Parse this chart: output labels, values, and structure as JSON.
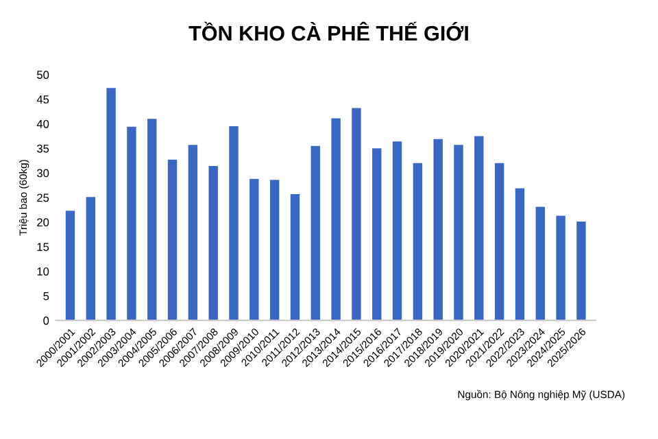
{
  "chart_data": {
    "type": "bar",
    "title": "TỒN KHO CÀ PHÊ THẾ GIỚI",
    "ylabel": "Triệu bao (60kg)",
    "categories": [
      "2000/2001",
      "2001/2002",
      "2002/2003",
      "2003/2004",
      "2004/2005",
      "2005/2006",
      "2006/2007",
      "2007/2008",
      "2008/2009",
      "2009/2010",
      "2010/2011",
      "2011/2012",
      "2012/2013",
      "2013/2014",
      "2014/2015",
      "2015/2016",
      "2016/2017",
      "2017/2018",
      "2018/2019",
      "2019/2020",
      "2020/2021",
      "2021/2022",
      "2022/2023",
      "2023/2024",
      "2024/2025",
      "2025/2026"
    ],
    "values": [
      22.3,
      25.1,
      47.3,
      39.4,
      41.0,
      32.7,
      35.7,
      31.4,
      39.5,
      28.8,
      28.6,
      25.7,
      35.5,
      41.1,
      43.2,
      35.0,
      36.4,
      32.0,
      36.9,
      35.7,
      37.5,
      32.0,
      26.9,
      23.1,
      21.3,
      20.1
    ],
    "color": "#3a66c4",
    "ylim": [
      0,
      50
    ],
    "yticks": [
      0,
      5,
      10,
      15,
      20,
      25,
      30,
      35,
      40,
      45,
      50
    ],
    "grid": false,
    "annotations": [
      "Nguồn: Bộ Nông nghiệp Mỹ (USDA)"
    ]
  }
}
